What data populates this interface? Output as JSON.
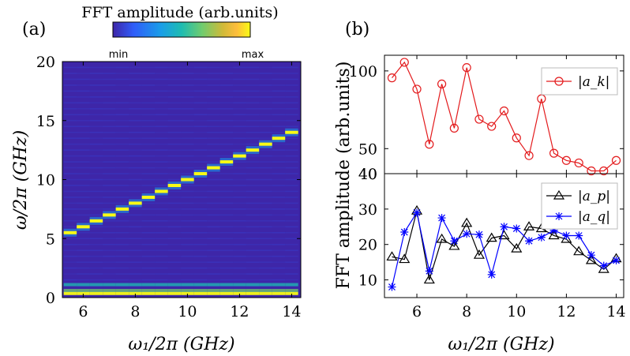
{
  "panel_a": {
    "label": "(a)",
    "colorbar": {
      "title": "FFT amplitude (arb.units)",
      "min_label": "min",
      "max_label": "max",
      "colors": [
        "#3e26a8",
        "#2f5df9",
        "#1a9ee8",
        "#1ebcb1",
        "#70cc6e",
        "#d0ba38",
        "#fdbd3c",
        "#f9fb15"
      ]
    },
    "chart_data": {
      "type": "heatmap",
      "xlabel": "ω₁/2π (GHz)",
      "ylabel": "ω/2π (GHz)",
      "xlim": [
        5.2,
        14.35
      ],
      "ylim": [
        0,
        20
      ],
      "xticks": [
        6,
        8,
        10,
        12,
        14
      ],
      "xtick_labels": [
        "6",
        "8",
        "10",
        "12",
        "14"
      ],
      "yticks": [
        0,
        5,
        10,
        15,
        20
      ],
      "ytick_labels": [
        "0",
        "5",
        "10",
        "15",
        "20"
      ],
      "drive_frequencies_GHz": [
        5.5,
        6.0,
        6.5,
        7.0,
        7.5,
        8.0,
        8.5,
        9.0,
        9.5,
        10.0,
        10.5,
        11.0,
        11.5,
        12.0,
        12.5,
        13.0,
        13.5,
        14.0
      ],
      "main_peak_frequency_GHz": [
        5.5,
        6.0,
        6.5,
        7.0,
        7.5,
        8.0,
        8.5,
        9.0,
        9.5,
        10.0,
        10.5,
        11.0,
        11.5,
        12.0,
        12.5,
        13.0,
        13.5,
        14.0
      ],
      "low_frequency_bands_GHz": [
        0.35,
        0.6,
        1.1
      ],
      "background_color": "#3e26a8",
      "peak_color": "#f9fb15"
    }
  },
  "panel_b": {
    "label": "(b)",
    "ylabel": "FFT amplitude (arb.units)",
    "xlabel": "ω₁/2π (GHz)",
    "chart_data": [
      {
        "type": "line",
        "x": [
          5.0,
          5.5,
          6.0,
          6.5,
          7.0,
          7.5,
          8.0,
          8.5,
          9.0,
          9.5,
          10.0,
          10.5,
          11.0,
          11.5,
          12.0,
          12.5,
          13.0,
          13.5,
          14.0
        ],
        "ylim": [
          40,
          115
        ],
        "yticks": [
          40,
          50,
          100
        ],
        "ytick_labels": [
          "40",
          "50",
          "100"
        ],
        "xlim": [
          4.7,
          14.3
        ],
        "legend_position": "top-right",
        "series": [
          {
            "name": "|a_k|",
            "color": "#e31a1c",
            "marker": "circle",
            "values": [
              94,
              108,
              85,
              52,
              89,
              60,
              103,
              65,
              61,
              70,
              55,
              47,
              78,
              48,
              45,
              44,
              41,
              41,
              45
            ]
          }
        ]
      },
      {
        "type": "line",
        "x": [
          5.0,
          5.5,
          6.0,
          6.5,
          7.0,
          7.5,
          8.0,
          8.5,
          9.0,
          9.5,
          10.0,
          10.5,
          11.0,
          11.5,
          12.0,
          12.5,
          13.0,
          13.5,
          14.0
        ],
        "ylim": [
          5,
          40
        ],
        "yticks": [
          10,
          20,
          30,
          40
        ],
        "ytick_labels": [
          "10",
          "20",
          "30",
          "40"
        ],
        "xticks": [
          6,
          8,
          10,
          12,
          14
        ],
        "xtick_labels": [
          "6",
          "8",
          "10",
          "12",
          "14"
        ],
        "xlim": [
          4.7,
          14.3
        ],
        "legend_position": "top-right",
        "series": [
          {
            "name": "|a_p|",
            "color": "#000000",
            "marker": "triangle",
            "values": [
              16.5,
              15.8,
              29.5,
              10.0,
              21.5,
              19.5,
              26.0,
              17.0,
              21.8,
              22.5,
              18.8,
              25.0,
              24.5,
              22.5,
              21.5,
              18.0,
              15.5,
              13.0,
              16.0
            ]
          },
          {
            "name": "|a_q|",
            "color": "#0000ff",
            "marker": "star",
            "values": [
              8.0,
              23.5,
              29.0,
              12.5,
              27.5,
              21.0,
              23.0,
              22.8,
              11.5,
              25.0,
              24.5,
              21.0,
              22.0,
              24.0,
              22.5,
              22.5,
              17.0,
              14.0,
              15.5
            ]
          }
        ]
      }
    ]
  }
}
